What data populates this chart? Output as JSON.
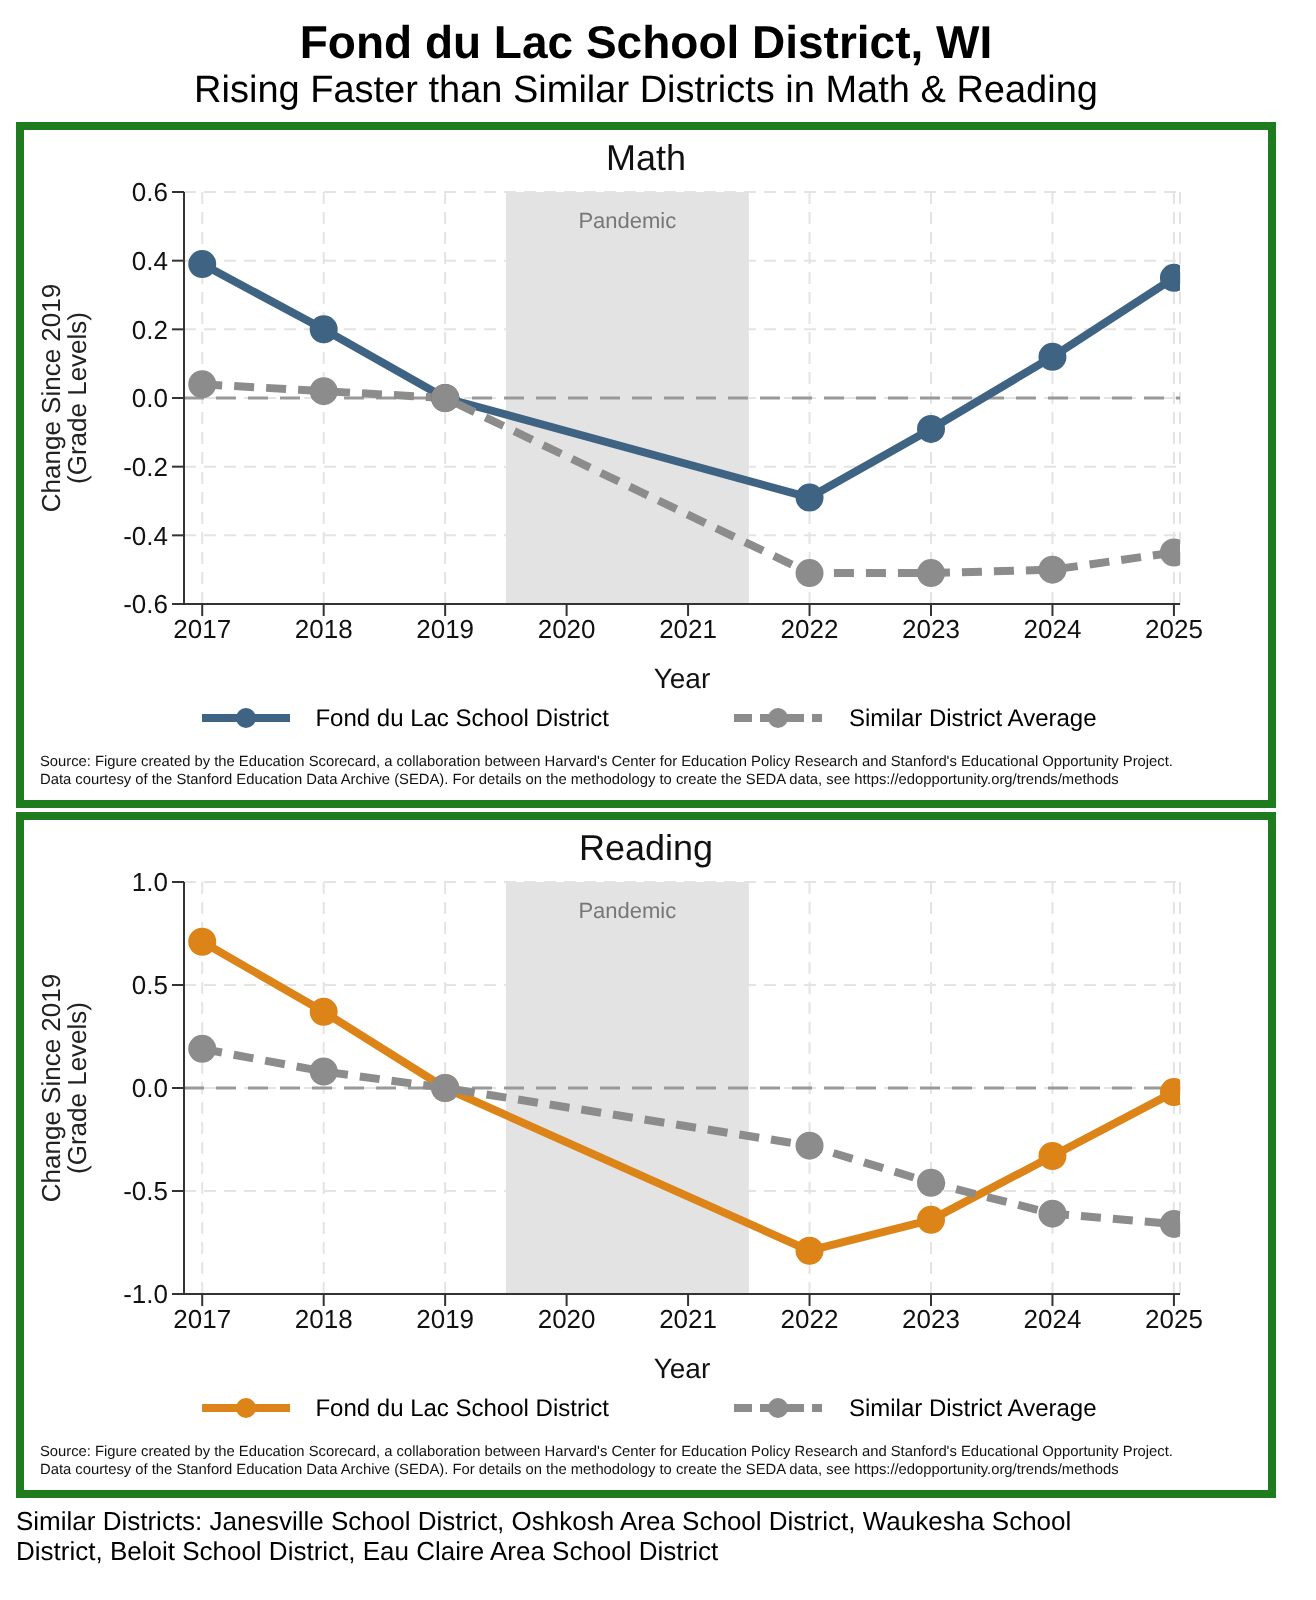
{
  "chart_data": [
    {
      "type": "other",
      "title": "Fond du Lac School District, WI",
      "subtitle": "Rising Faster than Similar Districts in Math & Reading"
    },
    {
      "type": "line",
      "title": "Math",
      "xlabel": "Year",
      "ylabel": "Change Since 2019 (Grade Levels)",
      "xlim": [
        2016.85,
        2025.05
      ],
      "xticks": [
        2017,
        2018,
        2019,
        2020,
        2021,
        2022,
        2023,
        2024,
        2025
      ],
      "ylim": [
        -0.6,
        0.6
      ],
      "yticks": [
        {
          "value": -0.6,
          "label": "-0.6"
        },
        {
          "value": -0.4,
          "label": "-0.4"
        },
        {
          "value": -0.2,
          "label": "-0.2"
        },
        {
          "value": 0,
          "label": "0.0"
        },
        {
          "value": 0.2,
          "label": "0.2"
        },
        {
          "value": 0.4,
          "label": "0.4"
        },
        {
          "value": 0.6,
          "label": "0.6"
        }
      ],
      "grid": true,
      "legend": "bottom",
      "marker": "circle",
      "series": [
        {
          "name": "Fond du Lac School District",
          "color": "#3f6383",
          "line_style": "solid",
          "x": [
            2017,
            2018,
            2019,
            2022,
            2023,
            2024,
            2025
          ],
          "values": [
            0.39,
            0.2,
            0,
            -0.29,
            -0.09,
            0.12,
            0.35
          ]
        },
        {
          "name": "Similar District Average",
          "color": "#8c8c8c",
          "line_style": "dashed",
          "x": [
            2017,
            2018,
            2019,
            2022,
            2023,
            2024,
            2025
          ],
          "values": [
            0.04,
            0.02,
            0,
            -0.51,
            -0.51,
            -0.5,
            -0.45
          ]
        }
      ],
      "bands": [
        {
          "axis": "x",
          "from": 2019.5,
          "to": 2021.5,
          "label": "Pandemic",
          "color": "#e3e3e3"
        }
      ],
      "ref_lines": [
        {
          "axis": "y",
          "value": 0,
          "color": "#999999",
          "line_style": "dashed"
        }
      ],
      "annotations": [
        "Source: Figure created by the Education Scorecard, a collaboration between Harvard's Center for Education Policy Research and Stanford's Educational Opportunity Project.",
        "Data courtesy of the Stanford Education Data Archive (SEDA). For details on the methodology to create the SEDA data, see https://edopportunity.org/trends/methods"
      ]
    },
    {
      "type": "line",
      "title": "Reading",
      "xlabel": "Year",
      "ylabel": "Change Since 2019 (Grade Levels)",
      "xlim": [
        2016.85,
        2025.05
      ],
      "xticks": [
        2017,
        2018,
        2019,
        2020,
        2021,
        2022,
        2023,
        2024,
        2025
      ],
      "ylim": [
        -1,
        1
      ],
      "yticks": [
        {
          "value": -1,
          "label": "-1.0"
        },
        {
          "value": -0.5,
          "label": "-0.5"
        },
        {
          "value": 0,
          "label": "0.0"
        },
        {
          "value": 0.5,
          "label": "0.5"
        },
        {
          "value": 1,
          "label": "1.0"
        }
      ],
      "grid": true,
      "legend": "bottom",
      "marker": "circle",
      "series": [
        {
          "name": "Fond du Lac School District",
          "color": "#dc8418",
          "line_style": "solid",
          "x": [
            2017,
            2018,
            2019,
            2022,
            2023,
            2024,
            2025
          ],
          "values": [
            0.71,
            0.37,
            0,
            -0.79,
            -0.64,
            -0.33,
            -0.02
          ]
        },
        {
          "name": "Similar District Average",
          "color": "#8c8c8c",
          "line_style": "dashed",
          "x": [
            2017,
            2018,
            2019,
            2022,
            2023,
            2024,
            2025
          ],
          "values": [
            0.19,
            0.08,
            0,
            -0.28,
            -0.46,
            -0.61,
            -0.66
          ]
        }
      ],
      "bands": [
        {
          "axis": "x",
          "from": 2019.5,
          "to": 2021.5,
          "label": "Pandemic",
          "color": "#e3e3e3"
        }
      ],
      "ref_lines": [
        {
          "axis": "y",
          "value": 0,
          "color": "#999999",
          "line_style": "dashed"
        }
      ],
      "annotations": [
        "Source: Figure created by the Education Scorecard, a collaboration between Harvard's Center for Education Policy Research and Stanford's Educational Opportunity Project.",
        "Data courtesy of the Stanford Education Data Archive (SEDA). For details on the methodology to create the SEDA data, see https://edopportunity.org/trends/methods"
      ]
    },
    {
      "type": "other",
      "annotations": [
        "Similar Districts: Janesville School District, Oshkosh Area School District, Waukesha School District, Beloit School District, Eau Claire Area School District"
      ]
    }
  ]
}
